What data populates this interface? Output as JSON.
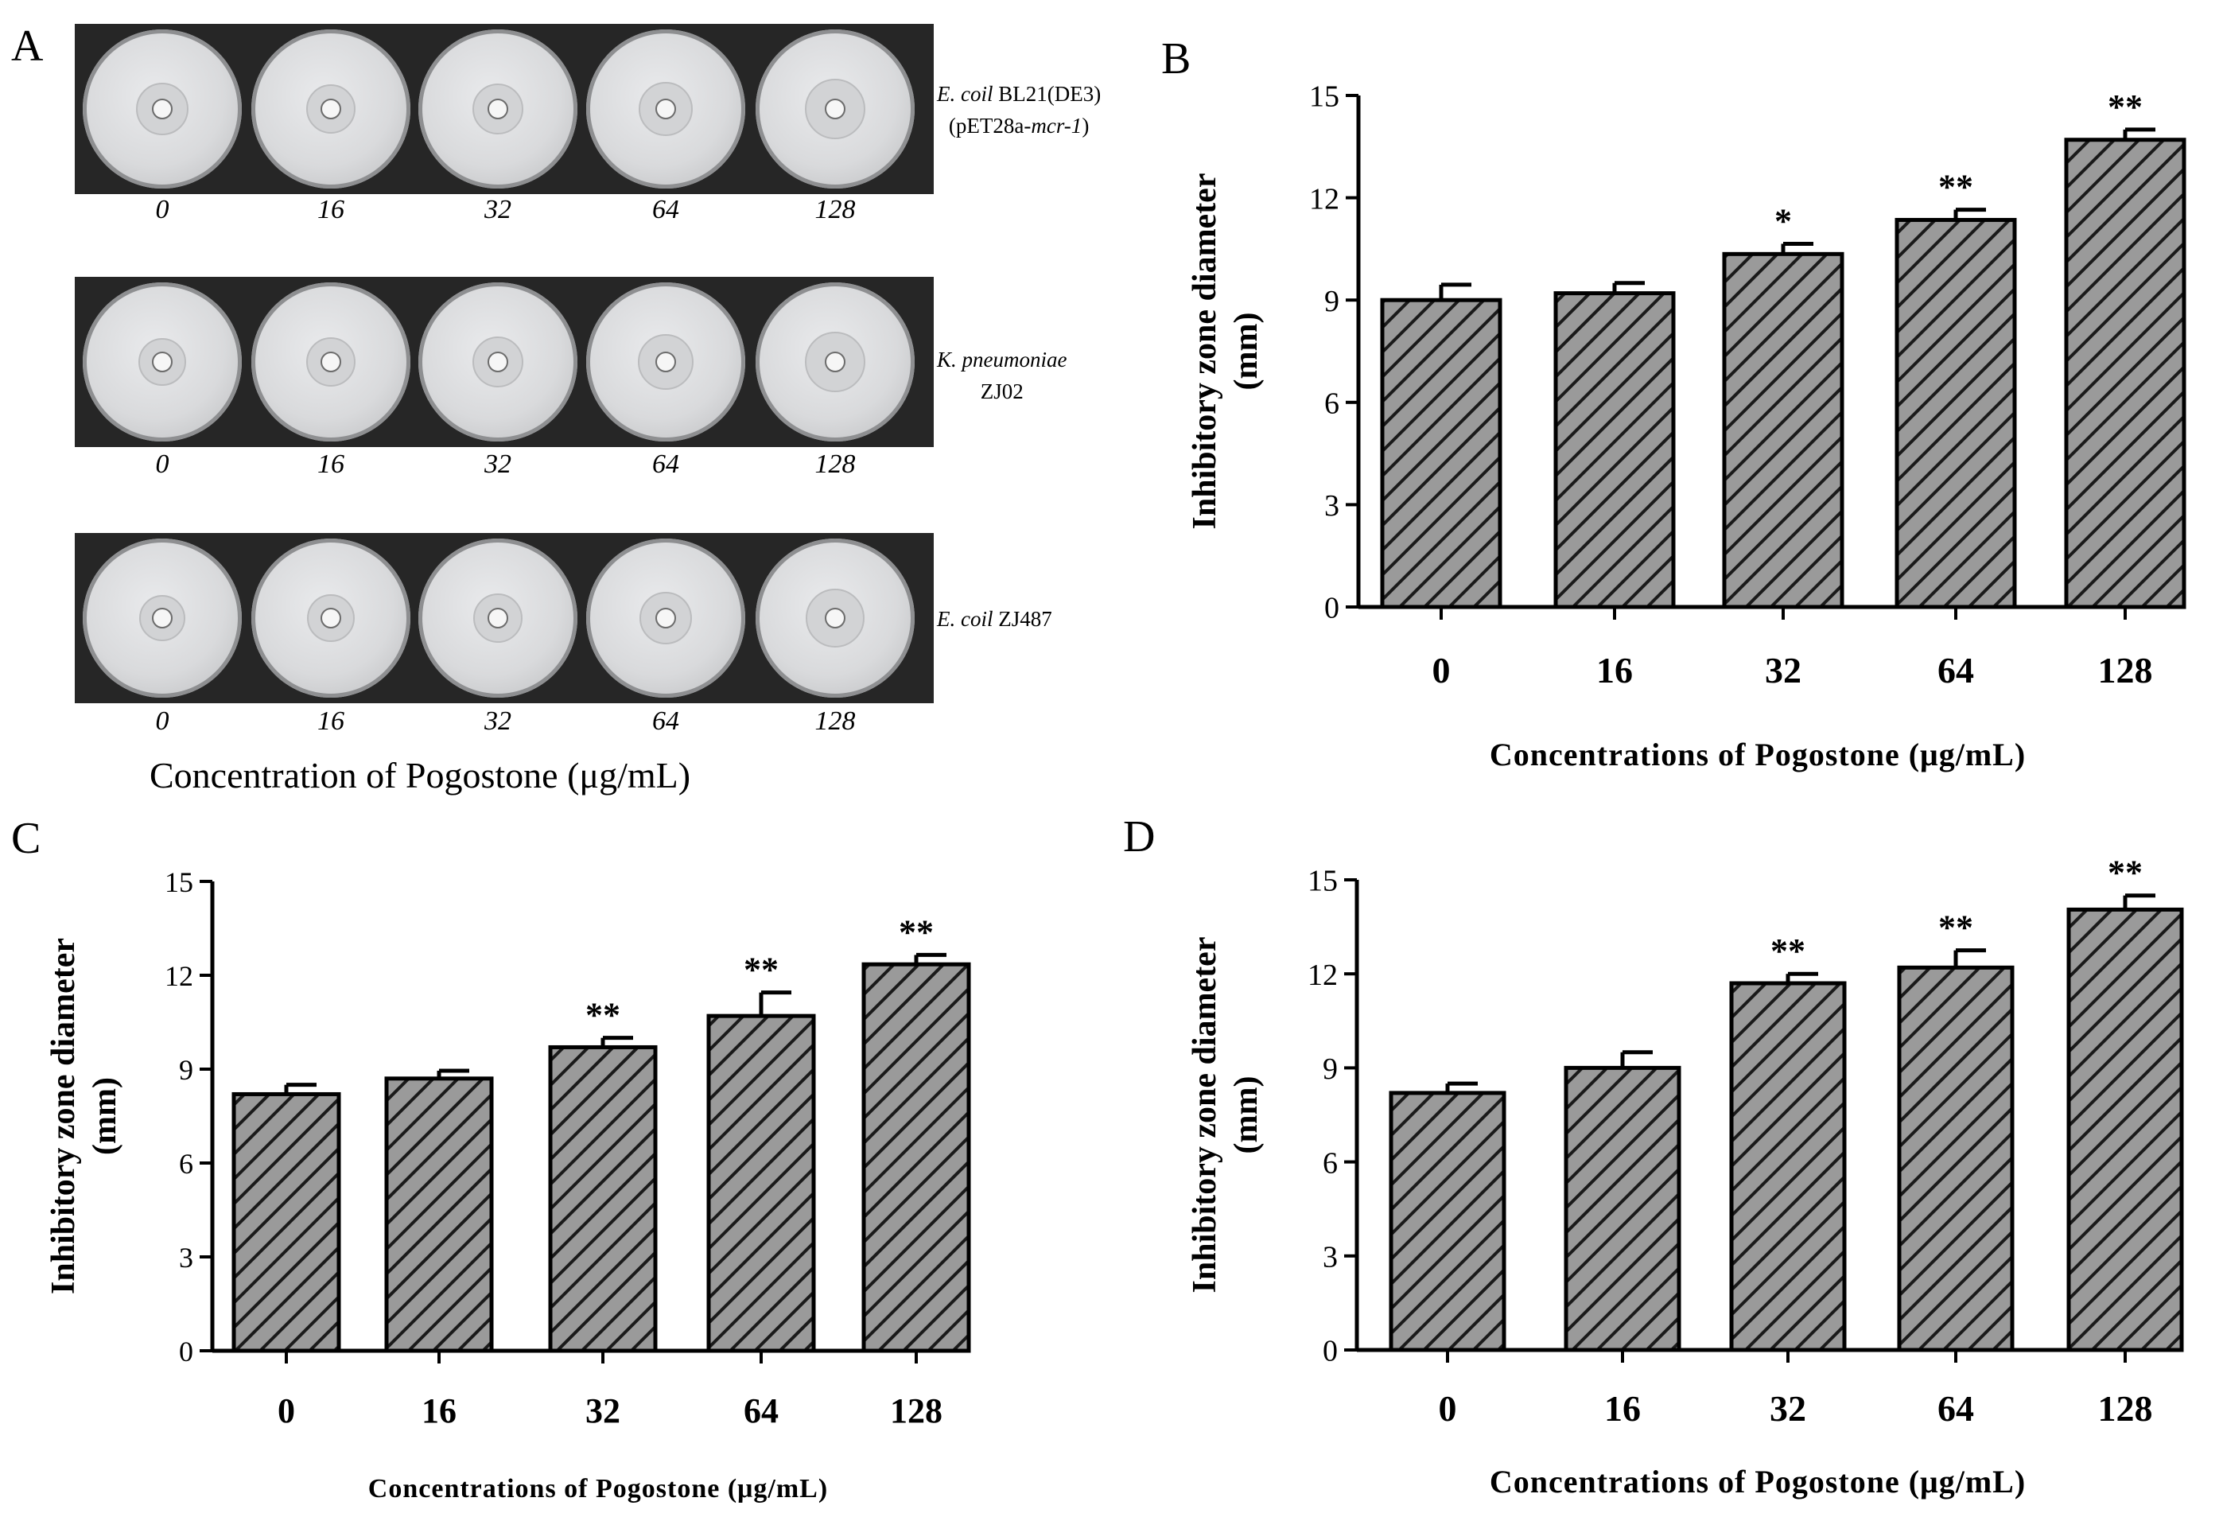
{
  "panel_a": {
    "letter": "A",
    "rows": [
      {
        "strain_parts": [
          {
            "text": "E. coil",
            "italic": true
          },
          {
            "text": " BL21(DE3)",
            "italic": false
          },
          {
            "text": "\n(pET28a-",
            "italic": false
          },
          {
            "text": "mcr-1",
            "italic": true
          },
          {
            "text": ")",
            "italic": false
          }
        ],
        "concentrations": [
          "0",
          "16",
          "32",
          "64",
          "128"
        ]
      },
      {
        "strain_parts": [
          {
            "text": "K. pneumoniae",
            "italic": true
          },
          {
            "text": "\nZJ02",
            "italic": false
          }
        ],
        "concentrations": [
          "0",
          "16",
          "32",
          "64",
          "128"
        ]
      },
      {
        "strain_parts": [
          {
            "text": "E. coil",
            "italic": true
          },
          {
            "text": " ZJ487",
            "italic": false
          }
        ],
        "concentrations": [
          "0",
          "16",
          "32",
          "64",
          "128"
        ]
      }
    ],
    "caption": "Concentration of Pogostone (μg/mL)"
  },
  "colors": {
    "bar_fill": "#9a9a9a",
    "hatch": "#1a1a1a",
    "axis": "#000000",
    "plate_bg": "#262626"
  },
  "chart_data": [
    {
      "panel": "B",
      "type": "bar",
      "categories": [
        "0",
        "16",
        "32",
        "64",
        "128"
      ],
      "values": [
        9.0,
        9.2,
        10.35,
        11.35,
        13.7
      ],
      "errors": [
        0.45,
        0.3,
        0.3,
        0.3,
        0.3
      ],
      "significance": [
        "",
        "",
        "*",
        "**",
        "**"
      ],
      "ylabel": "Inhibitory zone diameter\n(mm)",
      "xlabel": "Concentrations of Pogostone (μg/mL)",
      "ylim": [
        0,
        15
      ],
      "yticks": [
        "0",
        "3",
        "6",
        "9",
        "12",
        "15"
      ]
    },
    {
      "panel": "C",
      "type": "bar",
      "categories": [
        "0",
        "16",
        "32",
        "64",
        "128"
      ],
      "values": [
        8.2,
        8.7,
        9.7,
        10.7,
        12.35
      ],
      "errors": [
        0.3,
        0.25,
        0.3,
        0.75,
        0.3
      ],
      "significance": [
        "",
        "",
        "**",
        "**",
        "**"
      ],
      "ylabel": "Inhibitory zone diameter\n(mm)",
      "xlabel": "Concentrations of Pogostone (μg/mL)",
      "ylim": [
        0,
        15
      ],
      "yticks": [
        "0",
        "3",
        "6",
        "9",
        "12",
        "15"
      ]
    },
    {
      "panel": "D",
      "type": "bar",
      "categories": [
        "0",
        "16",
        "32",
        "64",
        "128"
      ],
      "values": [
        8.2,
        9.0,
        11.7,
        12.2,
        14.05
      ],
      "errors": [
        0.3,
        0.5,
        0.3,
        0.55,
        0.45
      ],
      "significance": [
        "",
        "",
        "**",
        "**",
        "**"
      ],
      "ylabel": "Inhibitory zone diameter\n(mm)",
      "xlabel": "Concentrations of Pogostone (μg/mL)",
      "ylim": [
        0,
        15
      ],
      "yticks": [
        "0",
        "3",
        "6",
        "9",
        "12",
        "15"
      ]
    }
  ]
}
